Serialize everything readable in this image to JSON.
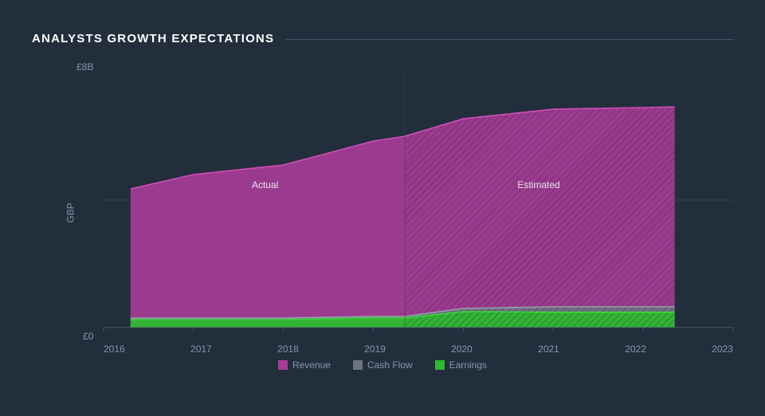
{
  "title": "ANALYSTS GROWTH EXPECTATIONS",
  "chart": {
    "type": "area",
    "background_color": "#232e3c",
    "plot_background": "#232e3c",
    "grid_color": "#36424f",
    "axis_line_color": "#4a5568",
    "tick_label_color": "#8a97a8",
    "tick_fontsize": 12,
    "title_color": "#ffffff",
    "title_fontsize": 15,
    "y_axis": {
      "label": "GBP",
      "min": 0,
      "max": 8,
      "tick_labels": {
        "top": "£8B",
        "bottom": "£0"
      }
    },
    "x_axis": {
      "min": 2016,
      "max": 2023,
      "ticks": [
        "2016",
        "2017",
        "2018",
        "2019",
        "2020",
        "2021",
        "2022",
        "2023"
      ]
    },
    "x_data": [
      2016.3,
      2017,
      2018,
      2019,
      2019.35,
      2020,
      2021,
      2022,
      2022.35
    ],
    "split_index": 4,
    "series": [
      {
        "name": "Revenue",
        "color": "#a63c96",
        "stroke": "#d24fb9",
        "values": [
          4.35,
          4.8,
          5.1,
          5.85,
          6.0,
          6.55,
          6.85,
          6.9,
          6.92
        ]
      },
      {
        "name": "Cash Flow",
        "color": "#6e7481",
        "stroke": "#9aa0ac",
        "values": [
          0.3,
          0.3,
          0.3,
          0.35,
          0.35,
          0.6,
          0.65,
          0.65,
          0.65
        ]
      },
      {
        "name": "Earnings",
        "color": "#2eb82e",
        "stroke": "#3bd93b",
        "values": [
          0.25,
          0.25,
          0.25,
          0.3,
          0.3,
          0.5,
          0.48,
          0.48,
          0.48
        ]
      }
    ],
    "hatch": {
      "stroke": "#1a2430",
      "width": 1,
      "gap": 6
    },
    "regions": {
      "actual_label": "Actual",
      "estimated_label": "Estimated"
    },
    "legend": [
      {
        "label": "Revenue",
        "color": "#a63c96"
      },
      {
        "label": "Cash Flow",
        "color": "#6e7481"
      },
      {
        "label": "Earnings",
        "color": "#2eb82e"
      }
    ]
  }
}
